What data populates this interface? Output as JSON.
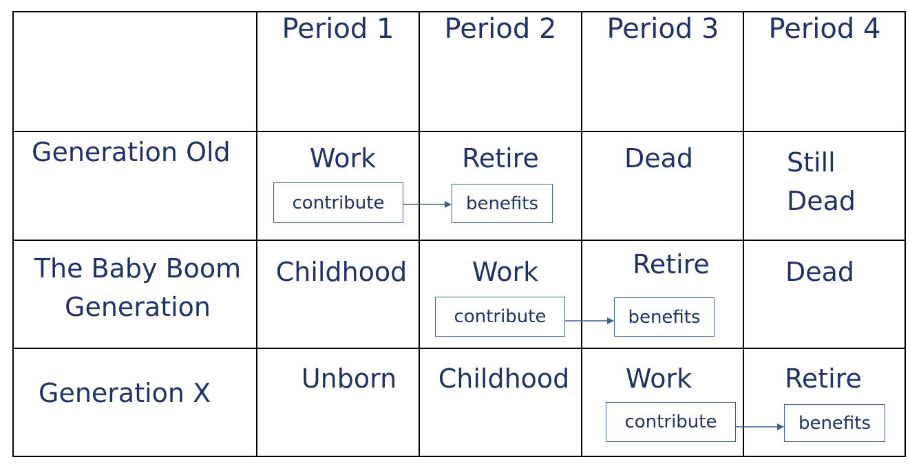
{
  "table": {
    "headers": [
      "Period 1",
      "Period 2",
      "Period 3",
      "Period 4"
    ],
    "rows": [
      {
        "label": "Generation Old",
        "cells": [
          "Work",
          "Retire",
          "Dead",
          "Still\nDead"
        ]
      },
      {
        "label": "The Baby Boom\nGeneration",
        "cells": [
          "Childhood",
          "Work",
          "Retire",
          "Dead"
        ]
      },
      {
        "label": "Generation X",
        "cells": [
          "Unborn",
          "Childhood",
          "Work",
          "Retire"
        ]
      }
    ]
  },
  "flows": [
    {
      "from": "contribute",
      "to": "benefits"
    },
    {
      "from": "contribute",
      "to": "benefits"
    },
    {
      "from": "contribute",
      "to": "benefits"
    }
  ],
  "colors": {
    "text": "#1f3263",
    "grid": "#000000",
    "box_border": "#3d5f90",
    "arrow": "#3d5f90"
  }
}
